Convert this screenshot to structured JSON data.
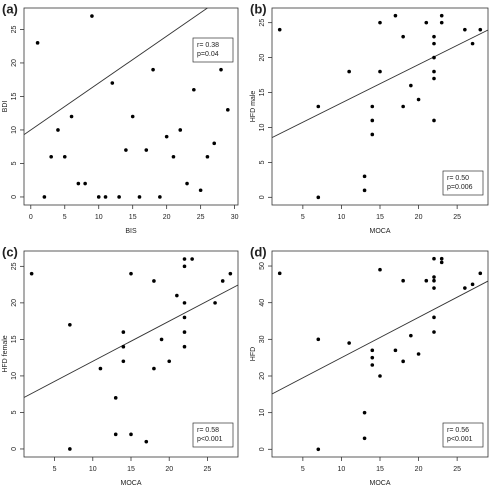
{
  "chart_data": [
    {
      "type": "scatter",
      "label": "(a)",
      "x_label": "BIS",
      "y_label": "BDI",
      "x": [
        1,
        2,
        3,
        4,
        5,
        6,
        7,
        8,
        9,
        10,
        11,
        12,
        13,
        14,
        15,
        16,
        17,
        18,
        19,
        20,
        21,
        22,
        23,
        24,
        25,
        26,
        27,
        28,
        29
      ],
      "values": [
        23,
        0,
        6,
        10,
        6,
        12,
        2,
        2,
        27,
        0,
        0,
        17,
        0,
        7,
        12,
        0,
        7,
        19,
        0,
        9,
        6,
        10,
        2,
        16,
        1,
        6,
        8,
        19,
        13
      ],
      "fit": {
        "intercept": 10,
        "slope": 0.7
      },
      "stats": [
        "r= 0.38",
        "p=0.04"
      ],
      "stats_position": "top-right",
      "xlim": [
        -1,
        30.5
      ],
      "ylim": [
        -1.2,
        28.2
      ],
      "xticks": [
        0,
        5,
        10,
        15,
        20,
        25,
        30
      ],
      "yticks": [
        0,
        5,
        10,
        15,
        20,
        25
      ]
    },
    {
      "type": "scatter",
      "label": "(b)",
      "x_label": "MOCA",
      "y_label": "HFD male",
      "x": [
        2,
        7,
        7,
        11,
        13,
        13,
        14,
        14,
        14,
        15,
        15,
        17,
        18,
        18,
        19,
        20,
        21,
        22,
        22,
        22,
        22,
        22,
        22,
        23,
        23,
        26,
        27,
        28
      ],
      "values": [
        24,
        13,
        0,
        18,
        3,
        1,
        13,
        11,
        9,
        25,
        18,
        26,
        23,
        13,
        16,
        14,
        25,
        11,
        17,
        18,
        20,
        22,
        23,
        26,
        25,
        24,
        22,
        24
      ],
      "fit": {
        "intercept": 8,
        "slope": 0.55
      },
      "stats": [
        "r= 0.50",
        "p=0.006"
      ],
      "stats_position": "bottom-right",
      "xlim": [
        1,
        29
      ],
      "ylim": [
        -1.1,
        27.1
      ],
      "xticks": [
        5,
        10,
        15,
        20,
        25
      ],
      "yticks": [
        0,
        5,
        10,
        15,
        20,
        25
      ]
    },
    {
      "type": "scatter",
      "label": "(c)",
      "x_label": "MOCA",
      "y_label": "HFD female",
      "x": [
        2,
        7,
        7,
        11,
        13,
        13,
        14,
        14,
        14,
        15,
        15,
        17,
        18,
        18,
        19,
        20,
        21,
        22,
        22,
        22,
        22,
        22,
        22,
        23,
        26,
        27,
        28
      ],
      "values": [
        24,
        17,
        0,
        11,
        7,
        2,
        16,
        14,
        12,
        24,
        2,
        1,
        23,
        11,
        15,
        12,
        21,
        14,
        16,
        18,
        20,
        25,
        26,
        26,
        20,
        23,
        24
      ],
      "fit": {
        "intercept": 6.5,
        "slope": 0.55
      },
      "stats": [
        "r= 0.58",
        "p<0.001"
      ],
      "stats_position": "bottom-right",
      "xlim": [
        1,
        29
      ],
      "ylim": [
        -1.1,
        27.1
      ],
      "xticks": [
        5,
        10,
        15,
        20,
        25
      ],
      "yticks": [
        0,
        5,
        10,
        15,
        20,
        25
      ]
    },
    {
      "type": "scatter",
      "label": "(d)",
      "x_label": "MOCA",
      "y_label": "HFD",
      "x": [
        2,
        7,
        7,
        11,
        13,
        13,
        14,
        14,
        14,
        15,
        15,
        17,
        18,
        18,
        19,
        20,
        21,
        22,
        22,
        22,
        22,
        22,
        22,
        23,
        23,
        26,
        27,
        28
      ],
      "values": [
        48,
        30,
        0,
        29,
        10,
        3,
        27,
        25,
        23,
        49,
        20,
        27,
        46,
        24,
        31,
        26,
        46,
        32,
        36,
        44,
        46,
        47,
        52,
        51,
        52,
        44,
        45,
        48
      ],
      "fit": {
        "intercept": 14,
        "slope": 1.1
      },
      "stats": [
        "r= 0.56",
        "p<0.001"
      ],
      "stats_position": "bottom-right",
      "xlim": [
        1,
        29
      ],
      "ylim": [
        -2.1,
        54.1
      ],
      "xticks": [
        5,
        10,
        15,
        20,
        25
      ],
      "yticks": [
        0,
        10,
        20,
        30,
        40,
        50
      ]
    }
  ]
}
